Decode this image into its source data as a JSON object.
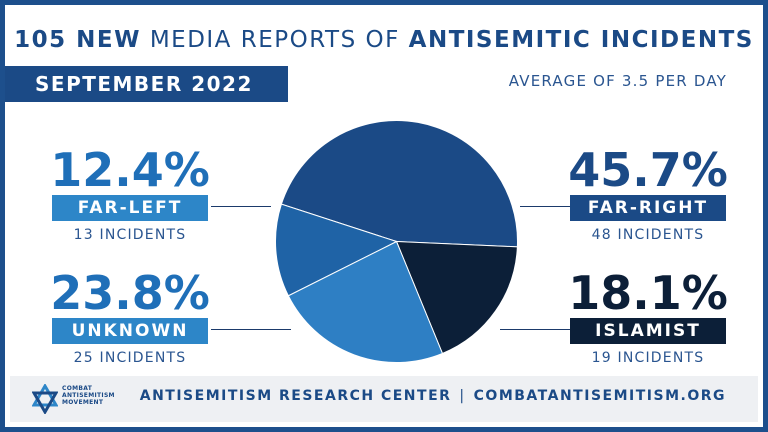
{
  "header": {
    "count": "105 NEW",
    "middle": "MEDIA REPORTS OF",
    "topic": "ANTISEMITIC INCIDENTS",
    "month": "SEPTEMBER 2022",
    "average": "AVERAGE OF 3.5 PER DAY"
  },
  "colors": {
    "far_right": "#1b4a86",
    "islamist": "#0c1f38",
    "unknown": "#2e7fc4",
    "far_left": "#1f63a6",
    "accent_text": "#1f6fb8",
    "navy": "#1b4a86"
  },
  "stats": {
    "far_left": {
      "pct": "12.4%",
      "label": "FAR-LEFT",
      "incidents": "13 INCIDENTS"
    },
    "unknown": {
      "pct": "23.8%",
      "label": "UNKNOWN",
      "incidents": "25 INCIDENTS"
    },
    "far_right": {
      "pct": "45.7%",
      "label": "FAR-RIGHT",
      "incidents": "48 INCIDENTS"
    },
    "islamist": {
      "pct": "18.1%",
      "label": "ISLAMIST",
      "incidents": "19 INCIDENTS"
    }
  },
  "chart_data": {
    "type": "pie",
    "categories": [
      "Far-Right",
      "Islamist",
      "Unknown",
      "Far-Left"
    ],
    "values": [
      45.7,
      18.1,
      23.8,
      12.4
    ],
    "counts": [
      48,
      19,
      25,
      13
    ],
    "colors": [
      "#1b4a86",
      "#0c1f38",
      "#2e7fc4",
      "#1f63a6"
    ],
    "title": "105 NEW MEDIA REPORTS OF ANTISEMITIC INCIDENTS"
  },
  "footer": {
    "left": "ANTISEMITISM RESEARCH CENTER",
    "separator": "|",
    "right": "COMBATANTISEMITISM.ORG",
    "logo_lines": [
      "COMBAT",
      "ANTISEMITISM",
      "MOVEMENT"
    ]
  }
}
